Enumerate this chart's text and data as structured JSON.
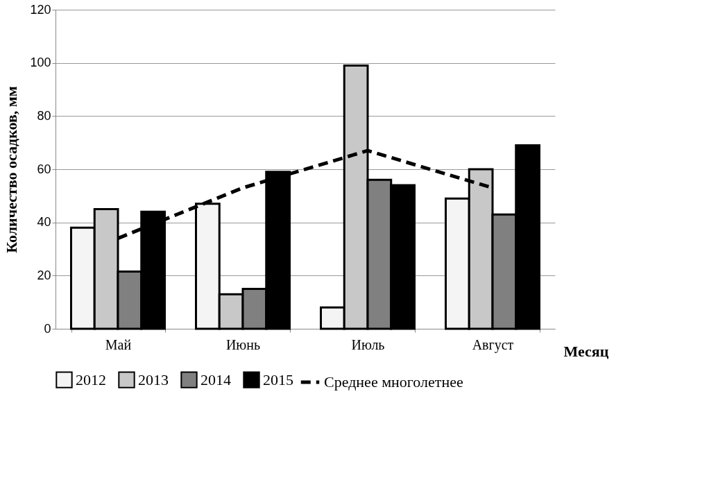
{
  "chart_data": {
    "type": "bar",
    "ylabel": "Количество осадков, мм",
    "xlabel": "Месяц",
    "categories": [
      "Май",
      "Июнь",
      "Июль",
      "Август"
    ],
    "series": [
      {
        "name": "2012",
        "color": "#f4f4f4",
        "values": [
          38,
          47,
          8,
          49
        ]
      },
      {
        "name": "2013",
        "color": "#c8c8c8",
        "values": [
          45,
          13,
          99,
          60
        ]
      },
      {
        "name": "2014",
        "color": "#808080",
        "values": [
          21.5,
          15,
          56,
          43
        ]
      },
      {
        "name": "2015",
        "color": "#000000",
        "values": [
          44,
          59,
          54,
          69
        ]
      },
      {
        "name": "Среднее многолетнее",
        "type": "line",
        "color": "#000000",
        "line_style": "dashed",
        "marker": "none",
        "values": [
          34,
          53,
          67,
          53
        ]
      }
    ],
    "ylim": [
      0,
      120
    ],
    "yticks": [
      0,
      20,
      40,
      60,
      80,
      100,
      120
    ],
    "grid": "y",
    "legend": "bottom"
  }
}
